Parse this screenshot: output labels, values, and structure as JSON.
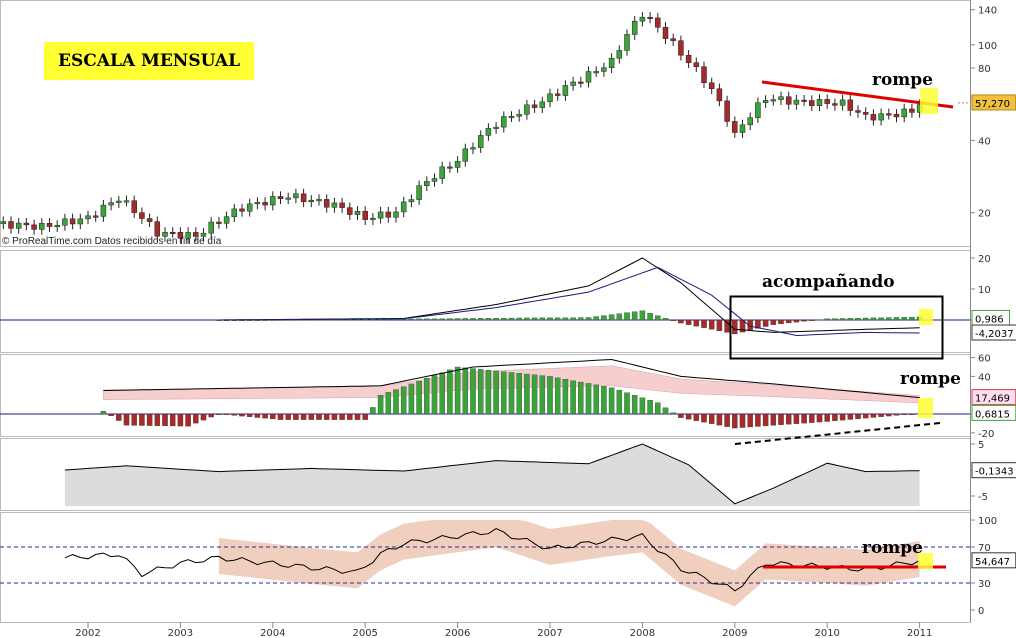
{
  "title_box": "ESCALA MENSUAL",
  "credit": "© ProRealTime.com  Datos recibidos en fin de día",
  "annotations": {
    "rompe_price": "rompe",
    "acompanando": "acompañando",
    "rompe_dmi": "rompe",
    "rompe_rsi": "rompe"
  },
  "colors": {
    "up": "#3aa33a",
    "down": "#a52a2a",
    "red_line": "#e00000",
    "highlight": "#ffff33"
  },
  "x_axis": {
    "years": [
      "2002",
      "2003",
      "2004",
      "2005",
      "2006",
      "2007",
      "2008",
      "2009",
      "2010",
      "2011"
    ]
  },
  "chart_data": [
    {
      "type": "candlestick",
      "panel": "price",
      "scale": "log",
      "y_ticks": [
        140,
        100,
        80,
        60,
        40,
        20
      ],
      "last_value": "57,270",
      "x_range": [
        "2001-01",
        "2011-01"
      ],
      "closes": [
        {
          "date": "2001-01",
          "close": 18
        },
        {
          "date": "2001-07",
          "close": 17.5
        },
        {
          "date": "2002-01",
          "close": 19
        },
        {
          "date": "2002-05",
          "close": 23
        },
        {
          "date": "2002-10",
          "close": 16.5
        },
        {
          "date": "2003-03",
          "close": 16
        },
        {
          "date": "2003-09",
          "close": 21
        },
        {
          "date": "2004-03",
          "close": 23.5
        },
        {
          "date": "2004-09",
          "close": 21.5
        },
        {
          "date": "2005-01",
          "close": 19
        },
        {
          "date": "2005-05",
          "close": 20
        },
        {
          "date": "2005-09",
          "close": 27
        },
        {
          "date": "2006-01",
          "close": 33
        },
        {
          "date": "2006-06",
          "close": 47
        },
        {
          "date": "2006-12",
          "close": 58
        },
        {
          "date": "2007-06",
          "close": 75
        },
        {
          "date": "2007-09",
          "close": 85
        },
        {
          "date": "2008-01",
          "close": 135
        },
        {
          "date": "2008-06",
          "close": 92
        },
        {
          "date": "2008-10",
          "close": 65
        },
        {
          "date": "2009-01",
          "close": 42
        },
        {
          "date": "2009-05",
          "close": 60
        },
        {
          "date": "2009-09",
          "close": 58
        },
        {
          "date": "2010-03",
          "close": 57
        },
        {
          "date": "2010-06",
          "close": 50
        },
        {
          "date": "2010-09",
          "close": 51
        },
        {
          "date": "2010-12",
          "close": 53
        },
        {
          "date": "2011-01",
          "close": 57.27
        }
      ]
    },
    {
      "type": "bar",
      "panel": "macd",
      "y_ticks": [
        20,
        10,
        0
      ],
      "values_shown": [
        "0,986",
        "-4,2037"
      ],
      "x_range": [
        "2003-06",
        "2011-01"
      ],
      "histogram": [
        {
          "date": "2003-06",
          "value": 0
        },
        {
          "date": "2005-01",
          "value": 0.2
        },
        {
          "date": "2006-06",
          "value": 0.6
        },
        {
          "date": "2007-06",
          "value": 0.8
        },
        {
          "date": "2008-01",
          "value": 3
        },
        {
          "date": "2008-06",
          "value": -1
        },
        {
          "date": "2009-01",
          "value": -4.5
        },
        {
          "date": "2009-06",
          "value": -1.5
        },
        {
          "date": "2010-01",
          "value": 0.4
        },
        {
          "date": "2011-01",
          "value": 0.986
        }
      ],
      "line1": [
        {
          "date": "2003-06",
          "value": 0
        },
        {
          "date": "2005-06",
          "value": 0.5
        },
        {
          "date": "2006-06",
          "value": 5
        },
        {
          "date": "2007-06",
          "value": 11
        },
        {
          "date": "2008-01",
          "value": 20
        },
        {
          "date": "2008-06",
          "value": 12
        },
        {
          "date": "2009-01",
          "value": -3
        },
        {
          "date": "2009-06",
          "value": -4
        },
        {
          "date": "2010-06",
          "value": -3
        },
        {
          "date": "2011-01",
          "value": -2.5
        }
      ],
      "line2": [
        {
          "date": "2003-06",
          "value": 0
        },
        {
          "date": "2005-06",
          "value": 0.4
        },
        {
          "date": "2006-06",
          "value": 4
        },
        {
          "date": "2007-06",
          "value": 9
        },
        {
          "date": "2008-03",
          "value": 17
        },
        {
          "date": "2008-10",
          "value": 8
        },
        {
          "date": "2009-03",
          "value": -2
        },
        {
          "date": "2009-09",
          "value": -5
        },
        {
          "date": "2010-06",
          "value": -4
        },
        {
          "date": "2011-01",
          "value": -4.2037
        }
      ]
    },
    {
      "type": "bar",
      "panel": "dmi",
      "y_ticks": [
        60,
        40,
        0,
        -20
      ],
      "values_shown": [
        "17,469",
        "0,6815"
      ],
      "x_range": [
        "2002-03",
        "2011-01"
      ],
      "histogram": [
        {
          "date": "2002-03",
          "value": 3
        },
        {
          "date": "2002-06",
          "value": -12
        },
        {
          "date": "2003-02",
          "value": -13
        },
        {
          "date": "2003-06",
          "value": 0
        },
        {
          "date": "2004-02",
          "value": -6
        },
        {
          "date": "2005-01",
          "value": -6
        },
        {
          "date": "2005-03",
          "value": 20
        },
        {
          "date": "2006-01",
          "value": 50
        },
        {
          "date": "2007-01",
          "value": 40
        },
        {
          "date": "2007-09",
          "value": 28
        },
        {
          "date": "2008-03",
          "value": 12
        },
        {
          "date": "2008-06",
          "value": -4
        },
        {
          "date": "2009-01",
          "value": -15
        },
        {
          "date": "2010-01",
          "value": -8
        },
        {
          "date": "2011-01",
          "value": 0.6815
        }
      ],
      "upper_line": [
        {
          "date": "2002-03",
          "value": 25
        },
        {
          "date": "2005-03",
          "value": 30
        },
        {
          "date": "2006-03",
          "value": 50
        },
        {
          "date": "2007-09",
          "value": 58
        },
        {
          "date": "2008-06",
          "value": 40
        },
        {
          "date": "2009-06",
          "value": 32
        },
        {
          "date": "2011-01",
          "value": 17.469
        }
      ]
    },
    {
      "type": "area",
      "panel": "oscillator",
      "y_ticks": [
        5,
        0,
        -5
      ],
      "value_shown": "-0,1343",
      "x_range": [
        "2001-10",
        "2011-01"
      ],
      "values": [
        {
          "date": "2001-10",
          "value": 0
        },
        {
          "date": "2002-06",
          "value": 0.8
        },
        {
          "date": "2003-06",
          "value": -0.3
        },
        {
          "date": "2004-06",
          "value": 0.3
        },
        {
          "date": "2005-06",
          "value": -0.2
        },
        {
          "date": "2006-06",
          "value": 1.8
        },
        {
          "date": "2007-06",
          "value": 1.2
        },
        {
          "date": "2008-01",
          "value": 5
        },
        {
          "date": "2008-07",
          "value": 1
        },
        {
          "date": "2009-01",
          "value": -6.5
        },
        {
          "date": "2009-06",
          "value": -3.5
        },
        {
          "date": "2010-01",
          "value": 1.3
        },
        {
          "date": "2010-06",
          "value": -0.3
        },
        {
          "date": "2011-01",
          "value": -0.1343
        }
      ]
    },
    {
      "type": "line",
      "panel": "rsi",
      "y_ticks": [
        100,
        70,
        30,
        0
      ],
      "levels": [
        70,
        30
      ],
      "value_shown": "54,647",
      "x_range": [
        "2001-10",
        "2011-01"
      ],
      "values": [
        {
          "date": "2001-10",
          "value": 58
        },
        {
          "date": "2002-05",
          "value": 62
        },
        {
          "date": "2002-08",
          "value": 40
        },
        {
          "date": "2003-01",
          "value": 52
        },
        {
          "date": "2003-06",
          "value": 58
        },
        {
          "date": "2004-06",
          "value": 47
        },
        {
          "date": "2004-12",
          "value": 42
        },
        {
          "date": "2005-03",
          "value": 62
        },
        {
          "date": "2005-06",
          "value": 74
        },
        {
          "date": "2006-06",
          "value": 88
        },
        {
          "date": "2007-01",
          "value": 68
        },
        {
          "date": "2007-09",
          "value": 78
        },
        {
          "date": "2008-01",
          "value": 82
        },
        {
          "date": "2008-06",
          "value": 46
        },
        {
          "date": "2009-01",
          "value": 22
        },
        {
          "date": "2009-05",
          "value": 52
        },
        {
          "date": "2010-01",
          "value": 48
        },
        {
          "date": "2010-06",
          "value": 45
        },
        {
          "date": "2011-01",
          "value": 54.647
        }
      ]
    }
  ]
}
